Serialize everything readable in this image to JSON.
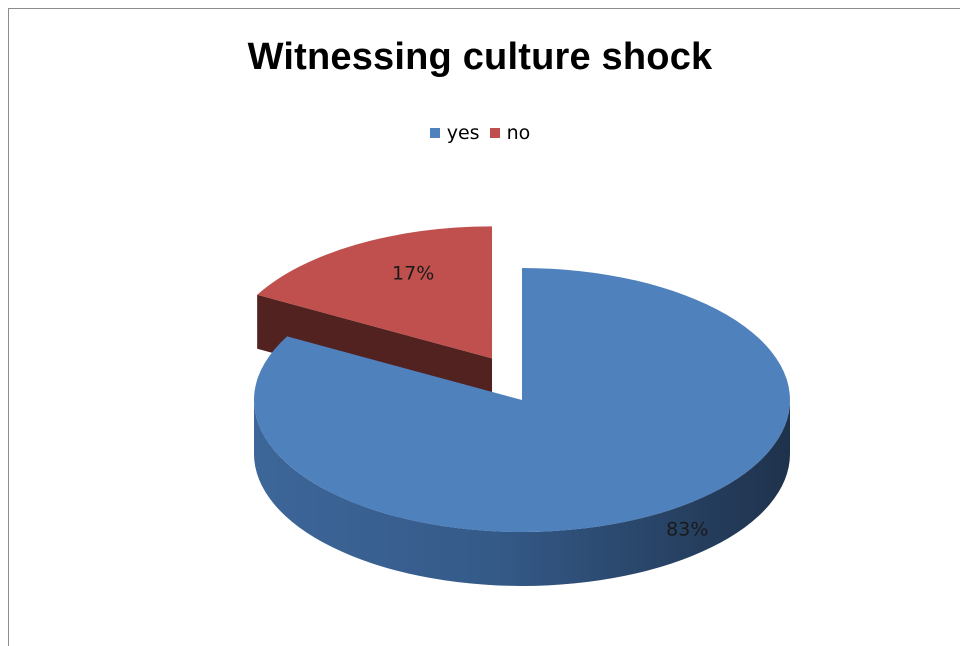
{
  "chart_data": {
    "type": "pie",
    "title": "Witnessing culture shock",
    "categories": [
      "yes",
      "no"
    ],
    "values": [
      83,
      17
    ],
    "data_labels": [
      "83%",
      "17%"
    ],
    "colors": [
      "#4f81bd",
      "#c0504d"
    ],
    "exploded": "no",
    "legend_position": "top",
    "style": "3d"
  }
}
